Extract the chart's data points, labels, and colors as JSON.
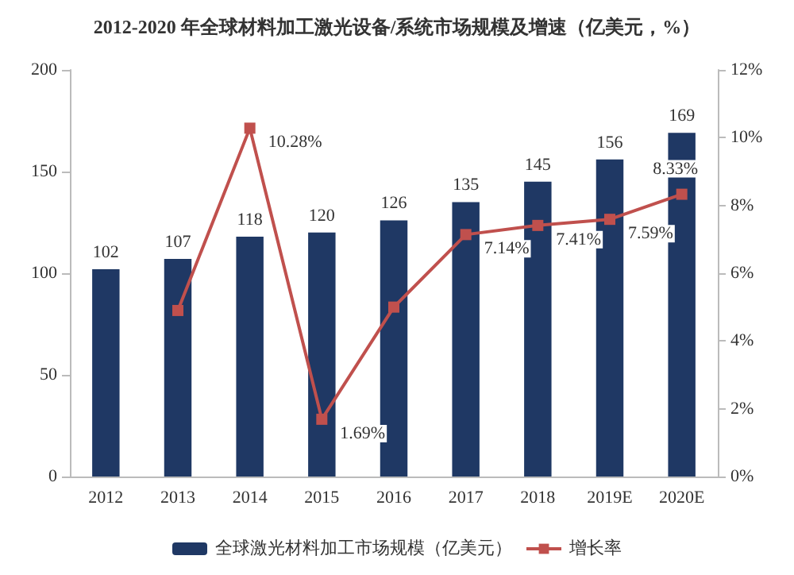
{
  "chart_data": {
    "type": "bar",
    "title": "2012-2020 年全球材料加工激光设备/系统市场规模及增速（亿美元，%）",
    "categories": [
      "2012",
      "2013",
      "2014",
      "2015",
      "2016",
      "2017",
      "2018",
      "2019E",
      "2020E"
    ],
    "series": [
      {
        "name": "全球激光材料加工市场规模（亿美元）",
        "color": "#1f3864",
        "values": [
          102,
          107,
          118,
          120,
          126,
          135,
          145,
          156,
          169
        ],
        "value_labels": [
          "102",
          "107",
          "118",
          "120",
          "126",
          "135",
          "145",
          "156",
          "169"
        ]
      },
      {
        "name": "增长率",
        "type": "line",
        "axis": "y2",
        "color": "#c0504d",
        "marker": "square",
        "values": [
          null,
          4.9,
          10.28,
          1.69,
          5.0,
          7.14,
          7.41,
          7.59,
          8.33
        ],
        "value_labels": [
          null,
          null,
          "10.28%",
          "1.69%",
          null,
          "7.14%",
          "7.41%",
          "7.59%",
          "8.33%"
        ]
      }
    ],
    "ylim": [
      0,
      200
    ],
    "yticks": [
      0,
      50,
      100,
      150,
      200
    ],
    "y2lim": [
      0,
      12
    ],
    "y2ticks": [
      {
        "value": 0,
        "label": "0%"
      },
      {
        "value": 2,
        "label": "2%"
      },
      {
        "value": 4,
        "label": "4%"
      },
      {
        "value": 6,
        "label": "6%"
      },
      {
        "value": 8,
        "label": "8%"
      },
      {
        "value": 10,
        "label": "10%"
      },
      {
        "value": 12,
        "label": "12%"
      }
    ],
    "grid": false,
    "legend": "bottom"
  }
}
